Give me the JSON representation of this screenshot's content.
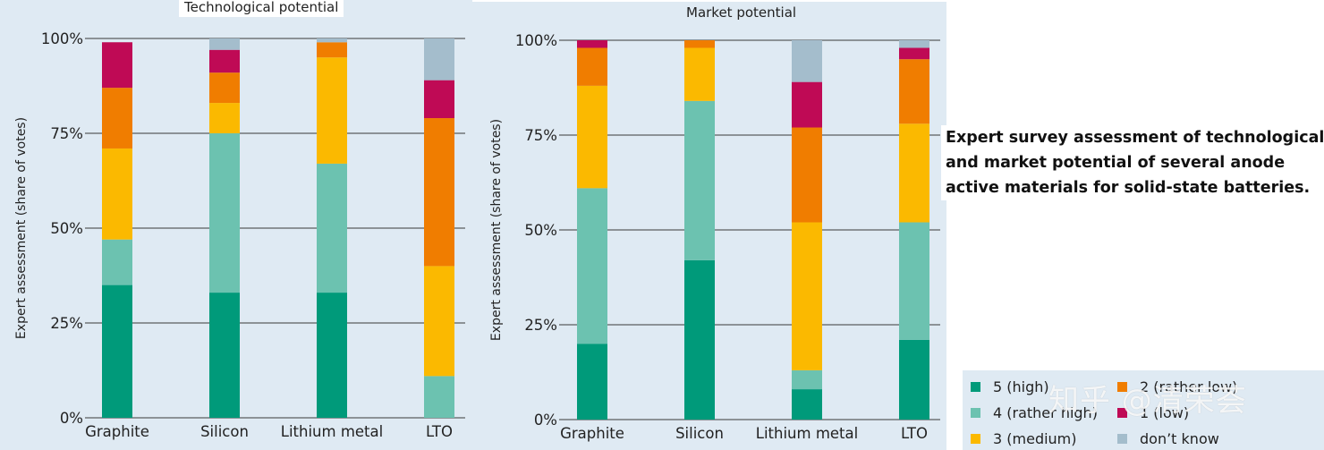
{
  "caption": "Expert survey assessment of technological\nand market potential of several anode\nactive materials for solid-state batteries.",
  "watermark": "知乎 @清荣荟",
  "legend": [
    {
      "label": "5 (high)",
      "color": "#009a7a"
    },
    {
      "label": "4 (rather high)",
      "color": "#6cc2b0"
    },
    {
      "label": "3 (medium)",
      "color": "#fbb900"
    },
    {
      "label": "2 (rather low)",
      "color": "#f07d00"
    },
    {
      "label": "1 (low)",
      "color": "#bf0a55"
    },
    {
      "label": "don’t know",
      "color": "#a4bdcc"
    }
  ],
  "chart_data": [
    {
      "type": "bar",
      "stacked": true,
      "title": "Technological potential",
      "ylabel": "Expert assessment (share of votes)",
      "xlabel": "",
      "ylim": [
        0,
        100
      ],
      "yticks": [
        "0%",
        "25%",
        "50%",
        "75%",
        "100%"
      ],
      "categories": [
        "Graphite",
        "Silicon",
        "Lithium metal",
        "LTO"
      ],
      "series": [
        {
          "name": "5 (high)",
          "color": "#009a7a",
          "values": [
            35,
            33,
            33,
            0
          ]
        },
        {
          "name": "4 (rather high)",
          "color": "#6cc2b0",
          "values": [
            12,
            42,
            34,
            11
          ]
        },
        {
          "name": "3 (medium)",
          "color": "#fbb900",
          "values": [
            24,
            8,
            28,
            29
          ]
        },
        {
          "name": "2 (rather low)",
          "color": "#f07d00",
          "values": [
            16,
            8,
            4,
            39
          ]
        },
        {
          "name": "1 (low)",
          "color": "#bf0a55",
          "values": [
            12,
            6,
            0,
            10
          ]
        },
        {
          "name": "don’t know",
          "color": "#a4bdcc",
          "values": [
            0,
            3,
            1,
            11
          ]
        }
      ]
    },
    {
      "type": "bar",
      "stacked": true,
      "title": "Market potential",
      "ylabel": "Expert assessment (share of votes)",
      "xlabel": "",
      "ylim": [
        0,
        100
      ],
      "yticks": [
        "0%",
        "25%",
        "50%",
        "75%",
        "100%"
      ],
      "categories": [
        "Graphite",
        "Silicon",
        "Lithium metal",
        "LTO"
      ],
      "series": [
        {
          "name": "5 (high)",
          "color": "#009a7a",
          "values": [
            20,
            42,
            8,
            21
          ]
        },
        {
          "name": "4 (rather high)",
          "color": "#6cc2b0",
          "values": [
            41,
            42,
            5,
            31
          ]
        },
        {
          "name": "3 (medium)",
          "color": "#fbb900",
          "values": [
            27,
            14,
            39,
            26
          ]
        },
        {
          "name": "2 (rather low)",
          "color": "#f07d00",
          "values": [
            10,
            2,
            25,
            17
          ]
        },
        {
          "name": "1 (low)",
          "color": "#bf0a55",
          "values": [
            2,
            0,
            12,
            3
          ]
        },
        {
          "name": "don’t know",
          "color": "#a4bdcc",
          "values": [
            0,
            0,
            11,
            2
          ]
        }
      ]
    }
  ]
}
